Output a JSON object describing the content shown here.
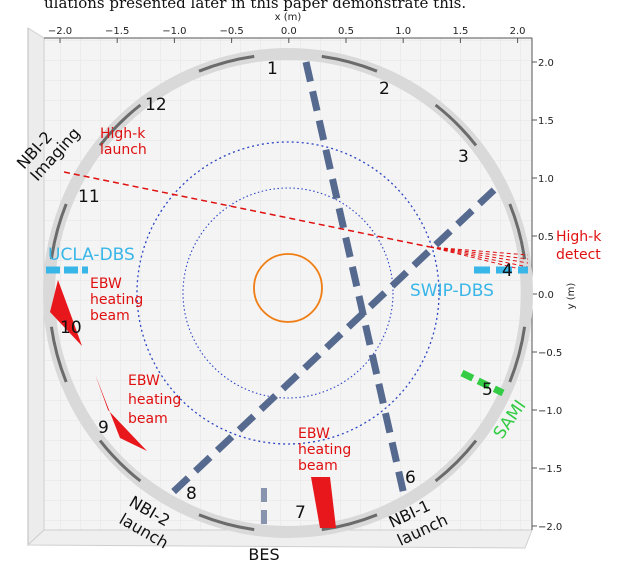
{
  "caption_fragment": "ulations presented later in this paper demonstrate this.",
  "axes": {
    "x_title": "x (m)",
    "y_title": "y (m)",
    "x_ticks": [
      "−2.0",
      "−1.5",
      "−1.0",
      "−0.5",
      "0.0",
      "0.5",
      "1.0",
      "1.5",
      "2.0"
    ],
    "y_ticks": [
      "2.0",
      "1.5",
      "1.0",
      "0.5",
      "0.0",
      "−0.5",
      "−1.0",
      "−1.5",
      "−2.0"
    ]
  },
  "ports": [
    "1",
    "2",
    "3",
    "4",
    "5",
    "6",
    "7",
    "8",
    "9",
    "10",
    "11",
    "12"
  ],
  "labels": {
    "nbi2_imaging": "NBI-2\nImaging",
    "highk_launch": "High-k\nlaunch",
    "highk_detect": "High-k\ndetect",
    "ucla_dbs": "UCLA-DBS",
    "swip_dbs": "SWIP-DBS",
    "ebw_1": "EBW\nheating\nbeam",
    "ebw_2": "EBW\nheating\nbeam",
    "ebw_3": "EBW\nheating\nbeam",
    "sami": "SAMI",
    "nbi2_launch": "NBI-2\nlaunch",
    "bes": "BES",
    "nbi1_launch": "NBI-1\nlaunch"
  },
  "colors": {
    "beam": "#56698f",
    "red": "#e01010",
    "blue_label": "#39b6e8",
    "green": "#33cc44",
    "orange": "#f07d12",
    "dotted": "#2d44c4",
    "vessel": "#d9d9d9"
  }
}
